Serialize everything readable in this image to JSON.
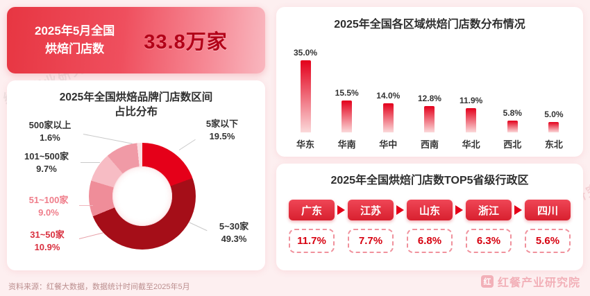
{
  "summary_card": {
    "title_line1": "2025年5月全国",
    "title_line2": "烘焙门店数",
    "value": "33.8万家"
  },
  "donut_card": {
    "title_line1": "2025年全国烘焙品牌门店数区间",
    "title_line2": "占比分布",
    "labels": [
      {
        "name": "5家以下",
        "pct": "19.5%"
      },
      {
        "name": "5~30家",
        "pct": "49.3%"
      },
      {
        "name": "31~50家",
        "pct": "10.9%"
      },
      {
        "name": "51~100家",
        "pct": "9.0%"
      },
      {
        "name": "101~500家",
        "pct": "9.7%"
      },
      {
        "name": "500家以上",
        "pct": "1.6%"
      }
    ]
  },
  "bar_card": {
    "title": "2025年全国各区域烘焙门店数分布情况"
  },
  "top5_card": {
    "title": "2025年全国烘焙门店数TOP5省级行政区",
    "items": [
      {
        "name": "广东",
        "pct": "11.7%"
      },
      {
        "name": "江苏",
        "pct": "7.7%"
      },
      {
        "name": "山东",
        "pct": "6.8%"
      },
      {
        "name": "浙江",
        "pct": "6.3%"
      },
      {
        "name": "四川",
        "pct": "5.6%"
      }
    ]
  },
  "footer": {
    "source_note": "资料来源：红餐大数据，数据统计时间截至2025年5月"
  },
  "branding": {
    "watermark": "红餐产业研究院",
    "logo_text": "红餐产业研究院",
    "logo_glyph": "红"
  },
  "colors": {
    "accent_red": "#e3001b",
    "dark_red": "#a50e18",
    "value_red": "#b20018",
    "pink_background": "#fdeff0"
  },
  "chart_data": [
    {
      "type": "pie",
      "title": "2025年全国烘焙品牌门店数区间占比分布",
      "categories": [
        "5家以下",
        "5~30家",
        "31~50家",
        "51~100家",
        "101~500家",
        "500家以上"
      ],
      "values": [
        19.5,
        49.3,
        10.9,
        9.0,
        9.7,
        1.6
      ],
      "unit": "%",
      "donut": true,
      "colors": [
        "#e50019",
        "#a50e18",
        "#ef8d99",
        "#f7bcc4",
        "#f09aa6",
        "#fbdfe3"
      ]
    },
    {
      "type": "bar",
      "title": "2025年全国各区域烘焙门店数分布情况",
      "categories": [
        "华东",
        "华南",
        "华中",
        "西南",
        "华北",
        "西北",
        "东北"
      ],
      "values": [
        35.0,
        15.5,
        14.0,
        12.8,
        11.9,
        5.8,
        5.0
      ],
      "value_labels": [
        "35.0%",
        "15.5%",
        "14.0%",
        "12.8%",
        "11.9%",
        "5.8%",
        "5.0%"
      ],
      "unit": "%",
      "ylim": [
        0,
        35
      ],
      "grid": false,
      "legend": false,
      "bar_color_top": "#e3001b",
      "bar_color_bottom": "#fbd9da"
    },
    {
      "type": "table",
      "title": "2025年全国烘焙门店数TOP5省级行政区",
      "categories": [
        "广东",
        "江苏",
        "山东",
        "浙江",
        "四川"
      ],
      "values": [
        11.7,
        7.7,
        6.8,
        6.3,
        5.6
      ],
      "unit": "%"
    }
  ]
}
